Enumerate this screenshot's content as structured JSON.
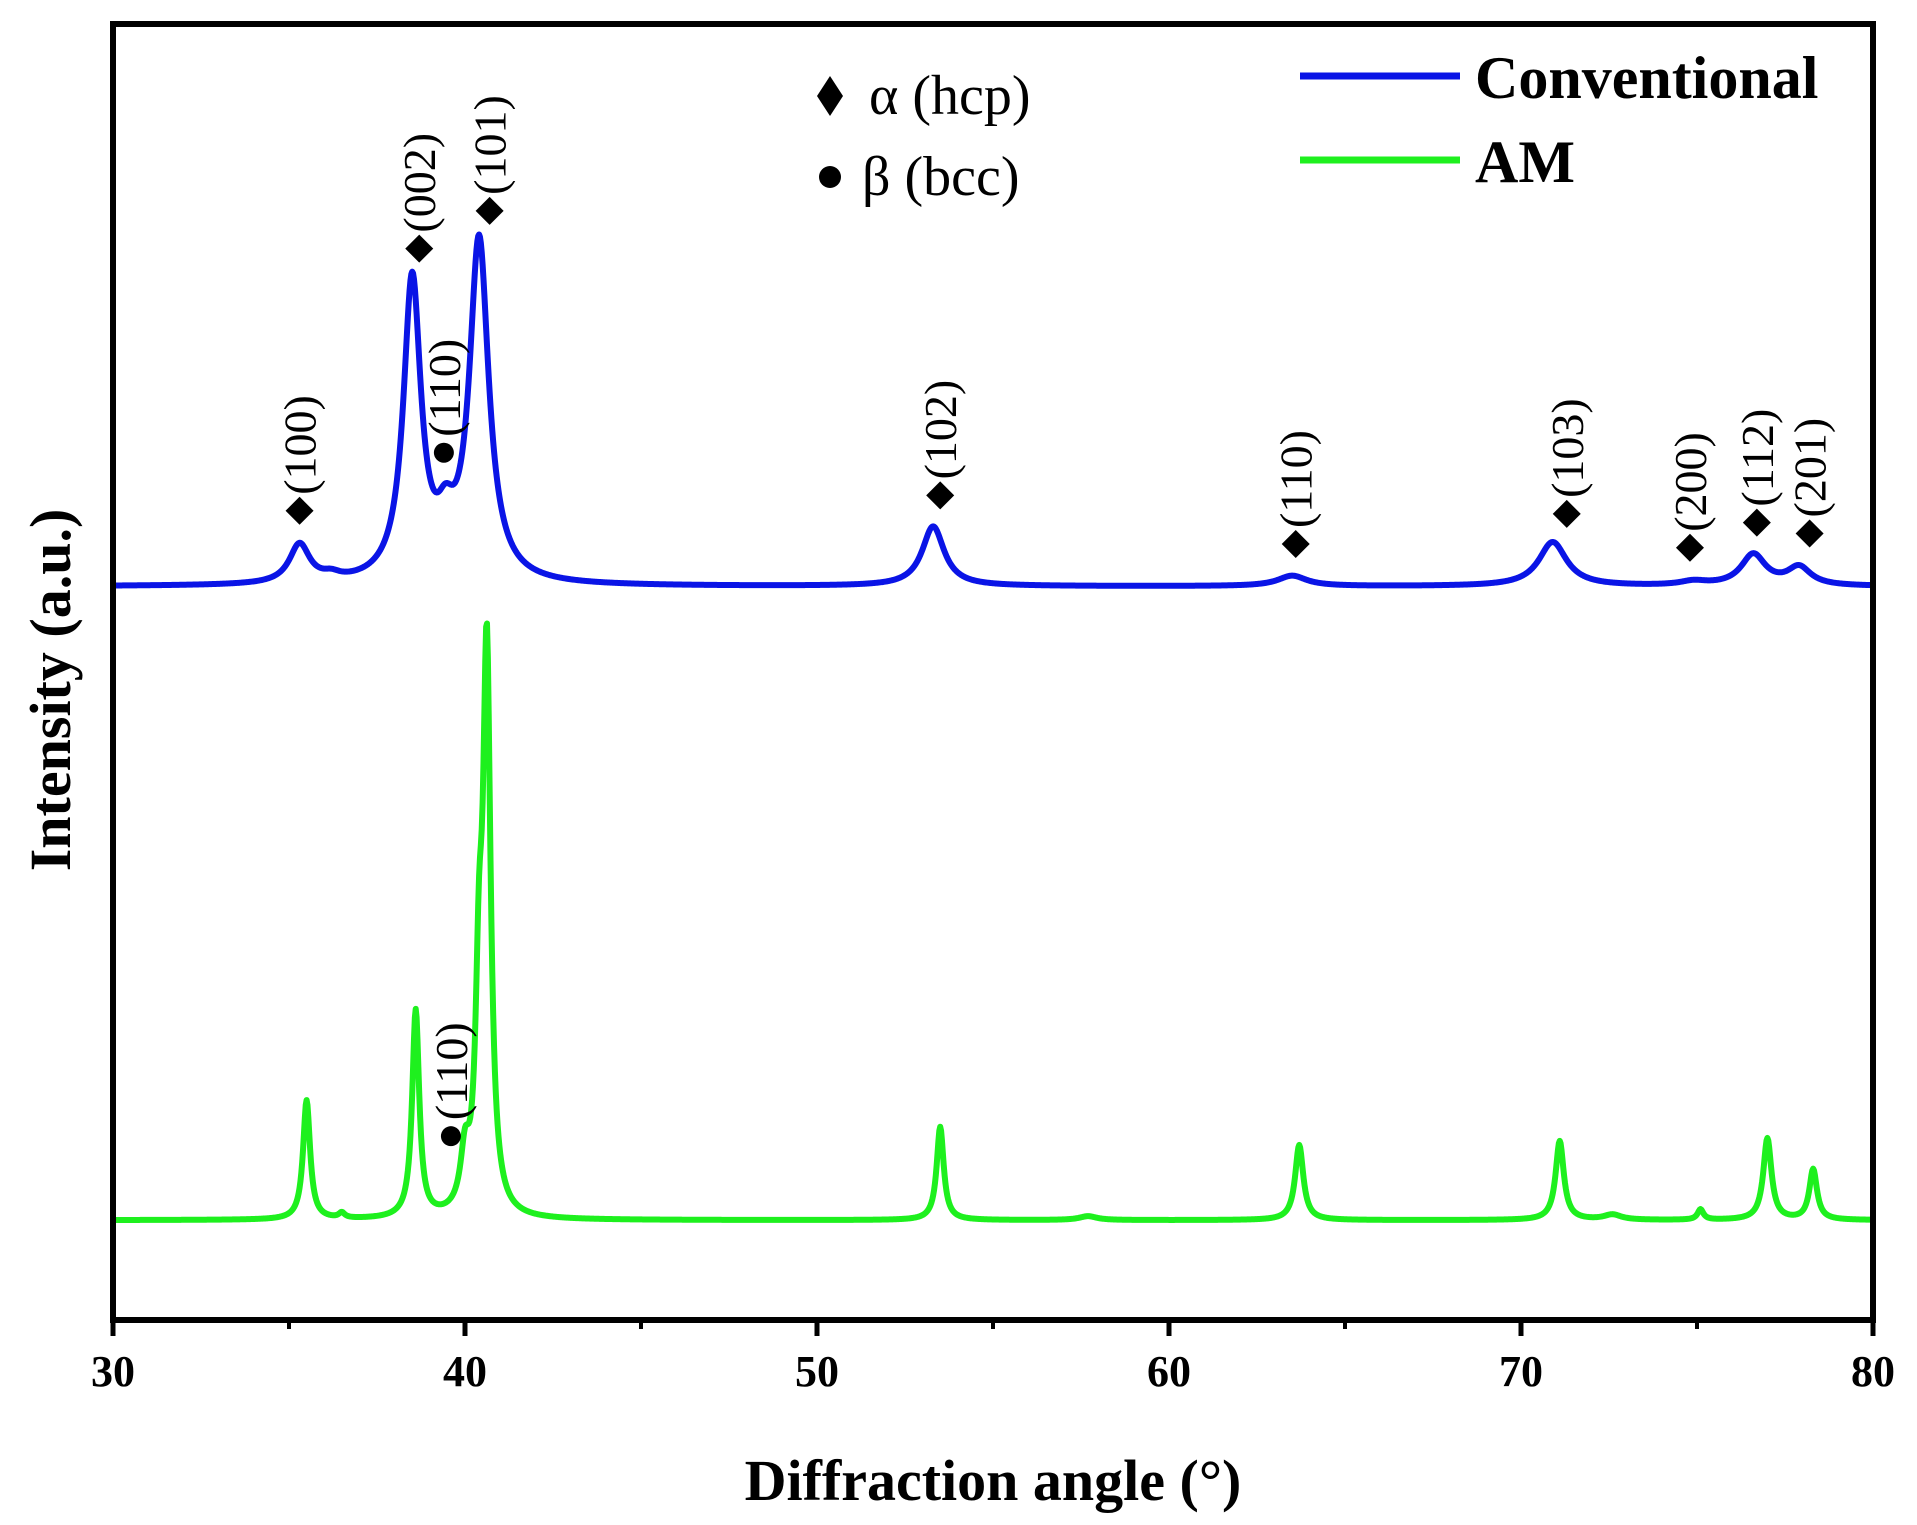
{
  "chart_data": {
    "type": "line",
    "title": "",
    "xlabel": "Diffraction angle (°)",
    "ylabel": "Intensity (a.u.)",
    "xlim": [
      30,
      80
    ],
    "ylim": [
      0,
      1
    ],
    "xticks": [
      30,
      40,
      50,
      60,
      70,
      80
    ],
    "xtick_labels": [
      "30",
      "40",
      "50",
      "60",
      "70",
      "80"
    ],
    "legend": {
      "placement": "top-right",
      "entries": [
        {
          "name": "Conventional",
          "color": "#0a14e6"
        },
        {
          "name": "AM",
          "color": "#1ef01e"
        }
      ]
    },
    "phase_legend": [
      {
        "marker": "diamond",
        "label": "α (hcp)"
      },
      {
        "marker": "circle",
        "label": "β (bcc)"
      }
    ],
    "series": [
      {
        "name": "Conventional",
        "color": "#0a14e6",
        "baseline": 0.566,
        "peaks": [
          {
            "x": 35.3,
            "h": 0.03,
            "w": 0.35
          },
          {
            "x": 36.2,
            "h": 0.004,
            "w": 0.3
          },
          {
            "x": 38.5,
            "h": 0.232,
            "w": 0.3
          },
          {
            "x": 39.45,
            "h": 0.03,
            "w": 0.3
          },
          {
            "x": 40.4,
            "h": 0.263,
            "w": 0.33
          },
          {
            "x": 53.3,
            "h": 0.046,
            "w": 0.38
          },
          {
            "x": 63.5,
            "h": 0.008,
            "w": 0.5
          },
          {
            "x": 70.9,
            "h": 0.034,
            "w": 0.48
          },
          {
            "x": 74.9,
            "h": 0.003,
            "w": 0.45
          },
          {
            "x": 76.6,
            "h": 0.024,
            "w": 0.42
          },
          {
            "x": 77.9,
            "h": 0.014,
            "w": 0.4
          }
        ],
        "annotations": [
          {
            "x": 35.3,
            "marker": "diamond",
            "label": "(100)"
          },
          {
            "x": 38.7,
            "marker": "diamond",
            "label": "(002)"
          },
          {
            "x": 39.4,
            "marker": "circle",
            "label": "(110)"
          },
          {
            "x": 40.7,
            "marker": "diamond",
            "label": "(101)"
          },
          {
            "x": 53.5,
            "marker": "diamond",
            "label": "(102)"
          },
          {
            "x": 63.6,
            "marker": "diamond",
            "label": "(110)"
          },
          {
            "x": 71.3,
            "marker": "diamond",
            "label": "(103)"
          },
          {
            "x": 74.8,
            "marker": "diamond",
            "label": "(200)"
          },
          {
            "x": 76.7,
            "marker": "diamond",
            "label": "(112)"
          },
          {
            "x": 78.2,
            "marker": "diamond",
            "label": "(201)"
          }
        ]
      },
      {
        "name": "AM",
        "color": "#1ef01e",
        "baseline": 0.077,
        "peaks": [
          {
            "x": 35.5,
            "h": 0.092,
            "w": 0.12
          },
          {
            "x": 36.5,
            "h": 0.004,
            "w": 0.1
          },
          {
            "x": 38.6,
            "h": 0.16,
            "w": 0.12
          },
          {
            "x": 40.0,
            "h": 0.04,
            "w": 0.15
          },
          {
            "x": 40.4,
            "h": 0.15,
            "w": 0.12
          },
          {
            "x": 40.62,
            "h": 0.425,
            "w": 0.13
          },
          {
            "x": 53.5,
            "h": 0.072,
            "w": 0.12
          },
          {
            "x": 57.7,
            "h": 0.003,
            "w": 0.3
          },
          {
            "x": 63.7,
            "h": 0.058,
            "w": 0.14
          },
          {
            "x": 71.1,
            "h": 0.061,
            "w": 0.14
          },
          {
            "x": 72.6,
            "h": 0.004,
            "w": 0.3
          },
          {
            "x": 75.1,
            "h": 0.008,
            "w": 0.1
          },
          {
            "x": 77.0,
            "h": 0.063,
            "w": 0.14
          },
          {
            "x": 78.3,
            "h": 0.039,
            "w": 0.13
          }
        ],
        "annotations": [
          {
            "x": 39.6,
            "marker": "circle",
            "label": "(110)"
          }
        ]
      }
    ]
  }
}
